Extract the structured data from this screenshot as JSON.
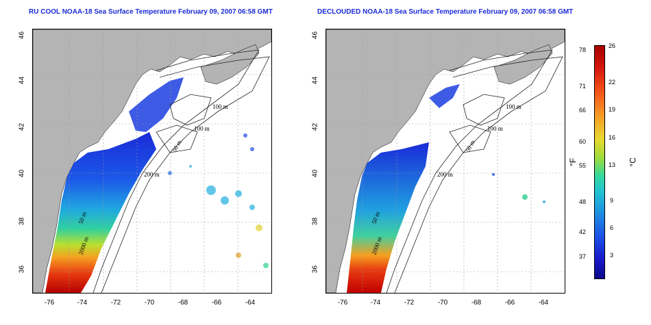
{
  "titles": {
    "left": "RU COOL NOAA-18 Sea Surface Temperature February 09, 2007 06:58 GMT",
    "right": "DECLOUDED NOAA-18 Sea Surface Temperature February 09, 2007 06:58 GMT"
  },
  "axes": {
    "y_ticks": [
      "46",
      "44",
      "42",
      "40",
      "38",
      "36"
    ],
    "x_ticks": [
      "-76",
      "-74",
      "-72",
      "-70",
      "-68",
      "-66",
      "-64"
    ]
  },
  "contours": {
    "left": [
      "100 m",
      "100 m",
      "50 m",
      "200 m",
      "50 m",
      "2000 m"
    ],
    "right": [
      "100 m",
      "100 m",
      "50 m",
      "200 m",
      "50 m",
      "2000 m"
    ]
  },
  "colorbar": {
    "fahrenheit_ticks": [
      "78",
      "71",
      "66",
      "60",
      "55",
      "48",
      "42",
      "37"
    ],
    "celsius_ticks": [
      "26",
      "22",
      "19",
      "16",
      "13",
      "9",
      "6",
      "3"
    ],
    "fahrenheit_unit": "°F",
    "celsius_unit": "°C"
  },
  "colors": {
    "land": "#b4b4b4",
    "title": "#1a2bd6",
    "cold": "#0d0a8a",
    "warm": "#a50000"
  }
}
